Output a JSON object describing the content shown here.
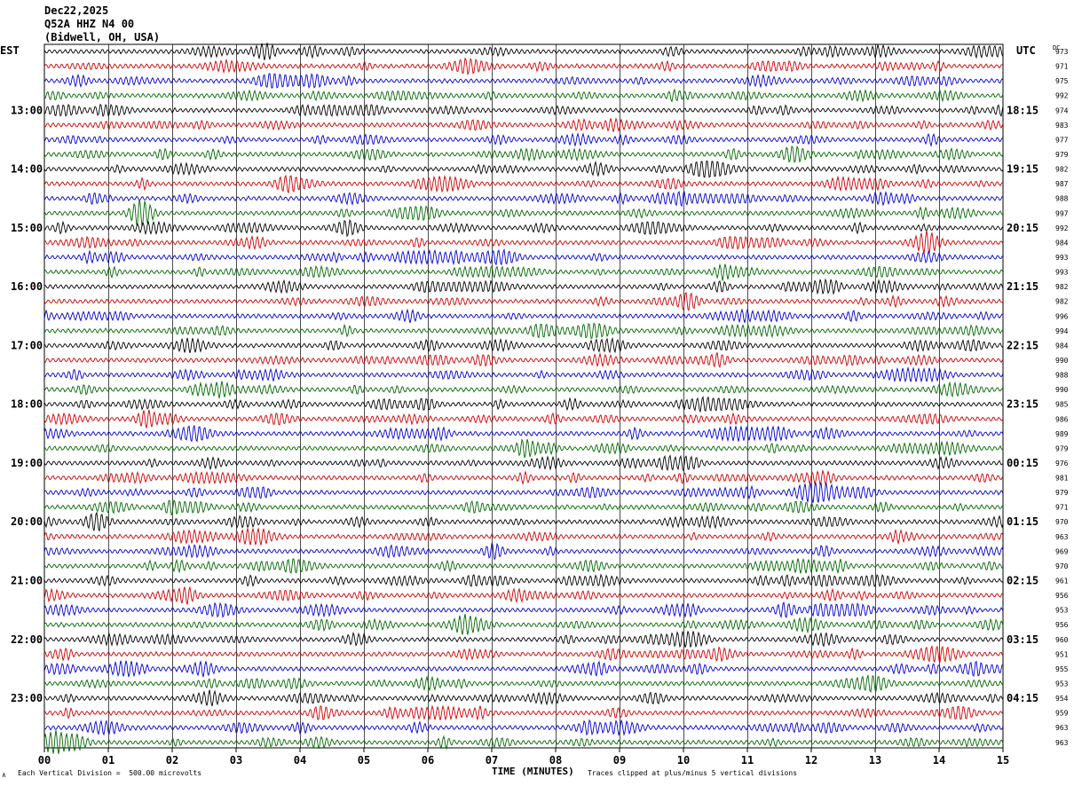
{
  "header": {
    "date": "Dec22,2025",
    "station": "Q52A HHZ N4 00",
    "location": "(Bidwell, OH, USA)"
  },
  "left_tz": "EST",
  "right_tz": "UTC",
  "dc_label": "DC",
  "footer": {
    "scale_note": "Each Vertical Division =  500.00 microvolts",
    "clip_note": "Traces clipped at plus/minus 5 vertical divisions",
    "corner_mark": "∧"
  },
  "colors": {
    "line1": "#000000",
    "line2": "#cc0000",
    "line3": "#0000cc",
    "line4": "#006600",
    "grid": "#000000"
  },
  "chart_data": {
    "type": "line",
    "title": "",
    "xlabel": "TIME (MINUTES)",
    "xlim": [
      0,
      15
    ],
    "x_ticks": [
      "00",
      "01",
      "02",
      "03",
      "04",
      "05",
      "06",
      "07",
      "08",
      "09",
      "10",
      "11",
      "12",
      "13",
      "14",
      "15"
    ],
    "rows_per_hour": 4,
    "trace_minutes_per_row": 15,
    "left_hour_labels": [
      "13:00",
      "14:00",
      "15:00",
      "16:00",
      "17:00",
      "18:00",
      "19:00",
      "20:00",
      "21:00",
      "22:00",
      "23:00"
    ],
    "right_hour_labels": [
      "18:15",
      "19:15",
      "20:15",
      "21:15",
      "22:15",
      "23:15",
      "00:15",
      "01:15",
      "02:15",
      "03:15",
      "04:15"
    ],
    "dc_offsets": [
      973,
      971,
      975,
      992,
      974,
      983,
      977,
      979,
      982,
      987,
      988,
      997,
      992,
      984,
      993,
      993,
      982,
      982,
      996,
      994,
      984,
      990,
      988,
      990,
      985,
      986,
      989,
      979,
      976,
      981,
      979,
      971,
      970,
      963,
      969,
      970,
      961,
      956,
      953,
      956,
      960,
      951,
      955,
      953,
      954,
      959,
      963,
      963
    ],
    "series": [
      {
        "color": "#000000"
      },
      {
        "color": "#cc0000"
      },
      {
        "color": "#0000cc"
      },
      {
        "color": "#006600"
      }
    ]
  }
}
